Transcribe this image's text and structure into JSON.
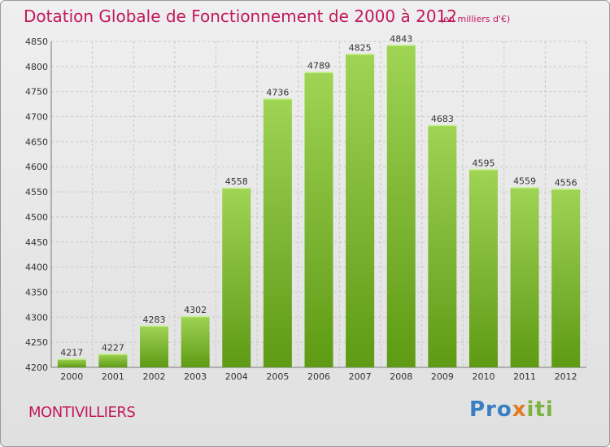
{
  "header": {
    "title": "Dotation Globale de Fonctionnement de 2000 à 2012",
    "unit": "(en milliers d'€)"
  },
  "footer": {
    "commune": "MONTIVILLIERS",
    "brand": {
      "p1": "Pro",
      "p2": "x",
      "p3": "iti"
    }
  },
  "colors": {
    "title": "#c2185b",
    "bar_top": "#9fd455",
    "bar_bottom": "#5e9a14"
  },
  "chart_data": {
    "type": "bar",
    "title": "Dotation Globale de Fonctionnement de 2000 à 2012",
    "xlabel": "",
    "ylabel": "",
    "categories": [
      "2000",
      "2001",
      "2002",
      "2003",
      "2004",
      "2005",
      "2006",
      "2007",
      "2008",
      "2009",
      "2010",
      "2011",
      "2012"
    ],
    "values": [
      4217,
      4227,
      4283,
      4302,
      4558,
      4736,
      4789,
      4825,
      4843,
      4683,
      4595,
      4559,
      4556
    ],
    "ylim": [
      4200,
      4850
    ],
    "yticks": [
      4200,
      4250,
      4300,
      4350,
      4400,
      4450,
      4500,
      4550,
      4600,
      4650,
      4700,
      4750,
      4800,
      4850
    ],
    "grid": true,
    "legend": "none"
  }
}
